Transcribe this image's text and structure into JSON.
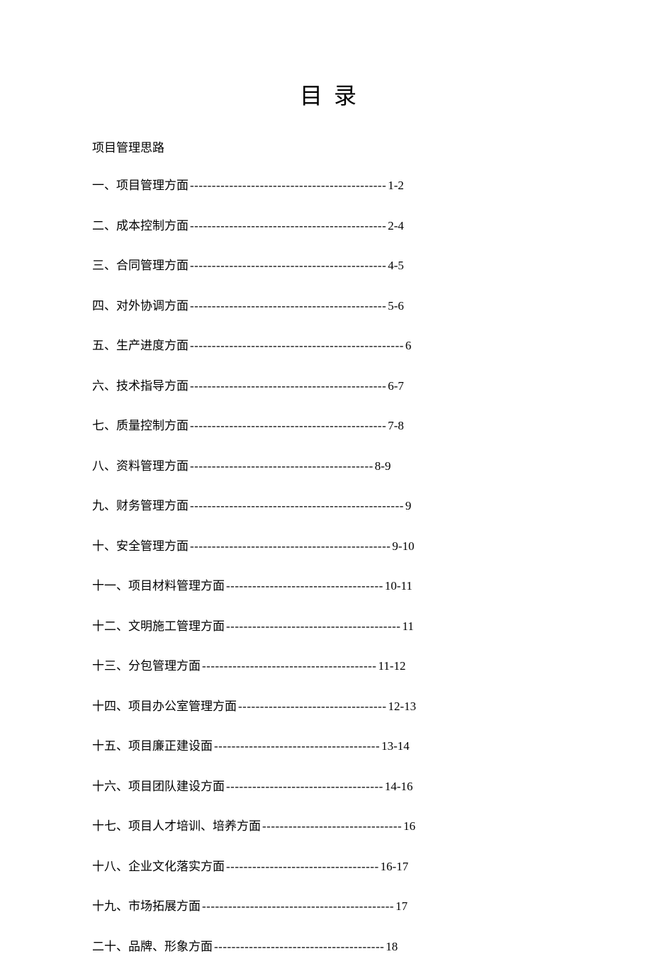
{
  "title": "目 录",
  "subtitle": "项目管理思路",
  "text_color": "#000000",
  "background_color": "#ffffff",
  "title_fontsize": 32,
  "body_fontsize": 17,
  "entries": [
    {
      "label": "一、项目管理方面 ",
      "leader": "---------------------------------------------",
      "page": "1-2"
    },
    {
      "label": "二、成本控制方面 ",
      "leader": "---------------------------------------------",
      "page": "2-4"
    },
    {
      "label": "三、合同管理方面 ",
      "leader": "---------------------------------------------",
      "page": "4-5"
    },
    {
      "label": "四、对外协调方面 ",
      "leader": "---------------------------------------------",
      "page": "5-6"
    },
    {
      "label": "五、生产进度方面",
      "leader": "-------------------------------------------------",
      "page": "6"
    },
    {
      "label": "六、技术指导方面 ",
      "leader": "---------------------------------------------",
      "page": "6-7"
    },
    {
      "label": "七、质量控制方面 ",
      "leader": "---------------------------------------------",
      "page": "7-8"
    },
    {
      "label": "八、资料管理方面 ",
      "leader": "------------------------------------------",
      "page": "8-9"
    },
    {
      "label": "九、财务管理方面",
      "leader": "-------------------------------------------------",
      "page": "9"
    },
    {
      "label": "十、安全管理方面",
      "leader": "----------------------------------------------",
      "page": "9-10"
    },
    {
      "label": "十一、项目材料管理方面",
      "leader": "------------------------------------",
      "page": "10-11"
    },
    {
      "label": "十二、文明施工管理方面",
      "leader": "----------------------------------------",
      "page": "11"
    },
    {
      "label": "十三、分包管理方面",
      "leader": "----------------------------------------",
      "page": "11-12"
    },
    {
      "label": "十四、项目办公室管理方面",
      "leader": "----------------------------------",
      "page": "12-13"
    },
    {
      "label": "十五、项目廉正建设面",
      "leader": "--------------------------------------",
      "page": "13-14"
    },
    {
      "label": "十六、项目团队建设方面",
      "leader": "------------------------------------",
      "page": "14-16"
    },
    {
      "label": "十七、项目人才培训、培养方面",
      "leader": "--------------------------------",
      "page": "16"
    },
    {
      "label": "十八、企业文化落实方面 ",
      "leader": "-----------------------------------",
      "page": "16-17"
    },
    {
      "label": "十九、市场拓展方面",
      "leader": "--------------------------------------------",
      "page": "17"
    },
    {
      "label": "二十、品牌、形象方面 ",
      "leader": "---------------------------------------",
      "page": "18"
    }
  ]
}
